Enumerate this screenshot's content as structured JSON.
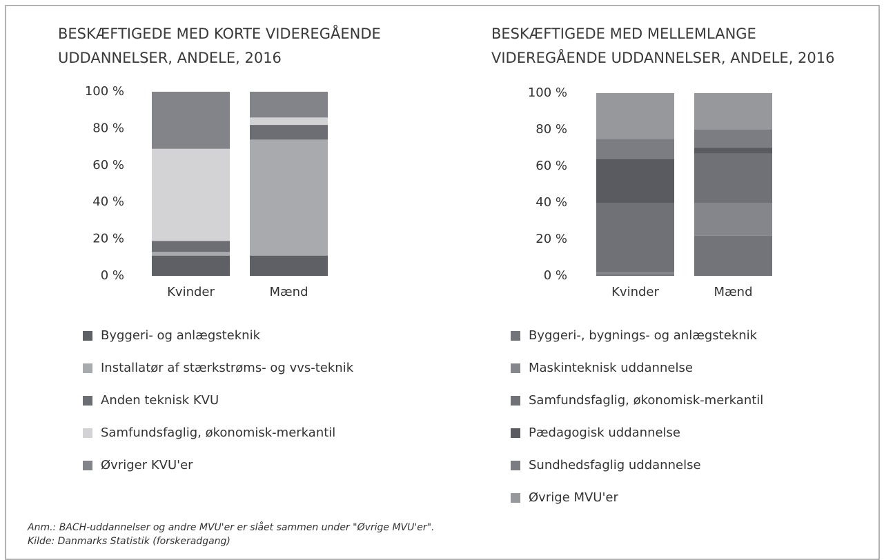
{
  "chart_data": [
    {
      "type": "bar",
      "stacked": true,
      "title": [
        "BESKÆFTIGEDE MED KORTE VIDEREGÅENDE",
        "UDDANNELSER, ANDELE, 2016"
      ],
      "categories": [
        "Kvinder",
        "Mænd"
      ],
      "ylim": [
        0,
        100
      ],
      "yticks": [
        {
          "value": 0,
          "label": "0 %"
        },
        {
          "value": 20,
          "label": "20 %"
        },
        {
          "value": 40,
          "label": "40 %"
        },
        {
          "value": 60,
          "label": "60 %"
        },
        {
          "value": 80,
          "label": "80 %"
        },
        {
          "value": 100,
          "label": "100 %"
        }
      ],
      "series": [
        {
          "name": "Byggeri- og anlægsteknik",
          "color": "#5f6066",
          "values": [
            11,
            11
          ]
        },
        {
          "name": "Installatør af stærkstrøms- og vvs-teknik",
          "color": "#a9aaae",
          "values": [
            2,
            63
          ]
        },
        {
          "name": "Anden teknisk KVU",
          "color": "#6d6e73",
          "values": [
            6,
            8
          ]
        },
        {
          "name": "Samfundsfaglig, økonomisk-merkantil",
          "color": "#d3d3d5",
          "values": [
            50,
            4
          ]
        },
        {
          "name": "Øvriger KVU'er",
          "color": "#838489",
          "values": [
            31,
            14
          ]
        }
      ]
    },
    {
      "type": "bar",
      "stacked": true,
      "title": [
        "BESKÆFTIGEDE MED MELLEMLANGE",
        "VIDEREGÅENDE UDDANNELSER, ANDELE, 2016"
      ],
      "categories": [
        "Kvinder",
        "Mænd"
      ],
      "ylim": [
        0,
        100
      ],
      "yticks": [
        {
          "value": 0,
          "label": "0 %"
        },
        {
          "value": 20,
          "label": "20 %"
        },
        {
          "value": 40,
          "label": "40 %"
        },
        {
          "value": 60,
          "label": "60 %"
        },
        {
          "value": 80,
          "label": "80 %"
        },
        {
          "value": 100,
          "label": "100 %"
        }
      ],
      "series": [
        {
          "name": "Byggeri-, bygnings- og anlægsteknik",
          "color": "#737479",
          "values": [
            1,
            22
          ]
        },
        {
          "name": "Maskinteknisk uddannelse",
          "color": "#85868b",
          "values": [
            1,
            18
          ]
        },
        {
          "name": "Samfundsfaglig, økonomisk-merkantil",
          "color": "#707176",
          "values": [
            38,
            27
          ]
        },
        {
          "name": "Pædagogisk uddannelse",
          "color": "#5a5b60",
          "values": [
            24,
            3
          ]
        },
        {
          "name": "Sundhedsfaglig uddannelse",
          "color": "#7c7d82",
          "values": [
            11,
            10
          ]
        },
        {
          "name": "Øvrige MVU'er",
          "color": "#97989c",
          "values": [
            25,
            20
          ]
        }
      ]
    }
  ],
  "notes": [
    "Anm.: BACH-uddannelser og andre MVU'er er slået sammen under \"Øvrige MVU'er\".",
    "Kilde: Danmarks Statistik (forskeradgang)"
  ]
}
